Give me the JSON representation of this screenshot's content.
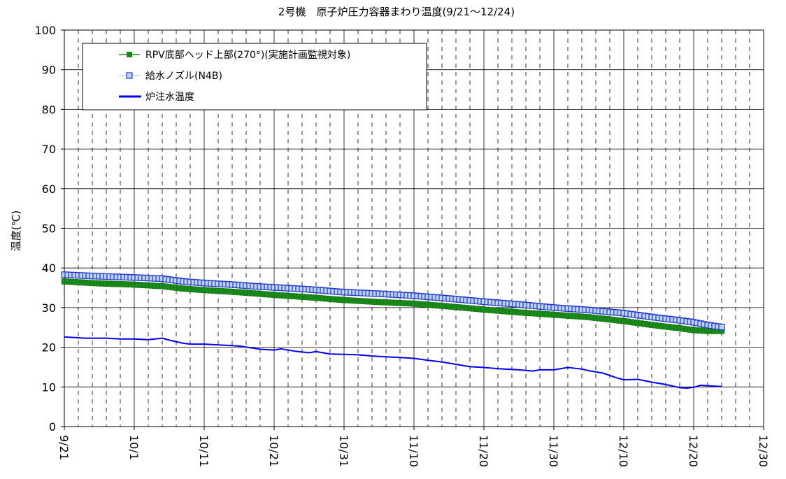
{
  "chart_data": {
    "type": "line",
    "title": "2号機　原子炉圧力容器まわり温度(9/21～12/24)",
    "xlabel": "",
    "ylabel": "温度(℃)",
    "ylim": [
      0,
      100
    ],
    "yticks": [
      0,
      10,
      20,
      30,
      40,
      50,
      60,
      70,
      80,
      90,
      100
    ],
    "x_day_range": [
      0,
      100
    ],
    "xticks": [
      {
        "day": 0,
        "label": "9/21"
      },
      {
        "day": 10,
        "label": "10/1"
      },
      {
        "day": 20,
        "label": "10/11"
      },
      {
        "day": 30,
        "label": "10/21"
      },
      {
        "day": 40,
        "label": "10/31"
      },
      {
        "day": 50,
        "label": "11/10"
      },
      {
        "day": 60,
        "label": "11/20"
      },
      {
        "day": 70,
        "label": "11/30"
      },
      {
        "day": 80,
        "label": "12/10"
      },
      {
        "day": 90,
        "label": "12/20"
      },
      {
        "day": 100,
        "label": "12/30"
      }
    ],
    "grid": true,
    "legend_position": "top-left",
    "series": [
      {
        "name": "RPV底部ヘッド上部(270°)(実施計画監視対象)",
        "color": "#1a8a1a",
        "marker": "filled-square",
        "x": [
          0,
          5,
          10,
          14,
          17,
          20,
          24,
          27,
          30,
          35,
          40,
          45,
          50,
          55,
          60,
          65,
          70,
          75,
          80,
          85,
          88,
          90,
          92,
          94
        ],
        "y": [
          36.6,
          36.1,
          35.8,
          35.4,
          34.8,
          34.4,
          34.0,
          33.6,
          33.2,
          32.6,
          31.9,
          31.4,
          31.0,
          30.3,
          29.5,
          28.8,
          28.2,
          27.6,
          26.6,
          25.4,
          24.8,
          24.3,
          24.1,
          24.1
        ]
      },
      {
        "name": "給水ノズル(N4B)",
        "color": "#2233cc",
        "marker": "hollow-square",
        "x": [
          0,
          5,
          10,
          14,
          17,
          20,
          24,
          27,
          30,
          35,
          40,
          45,
          50,
          55,
          60,
          65,
          70,
          75,
          80,
          85,
          88,
          90,
          92,
          94
        ],
        "y": [
          38.3,
          37.9,
          37.6,
          37.3,
          36.6,
          36.2,
          35.8,
          35.4,
          35.1,
          34.6,
          33.9,
          33.5,
          33.0,
          32.3,
          31.5,
          30.8,
          30.0,
          29.4,
          28.6,
          27.4,
          26.8,
          26.3,
          25.6,
          25.1
        ]
      },
      {
        "name": "炉注水温度",
        "color": "#0000ee",
        "marker": "none",
        "x": [
          0,
          3,
          6,
          8,
          10,
          12,
          14,
          15,
          17,
          18,
          20,
          23,
          25,
          28,
          30,
          31,
          33,
          35,
          36,
          38,
          40,
          42,
          44,
          46,
          48,
          50,
          52,
          54,
          56,
          58,
          60,
          62,
          65,
          67,
          68,
          70,
          72,
          74,
          75,
          77,
          79,
          80,
          82,
          84,
          86,
          88,
          89,
          90,
          91,
          92,
          93,
          94
        ],
        "y": [
          22.6,
          22.3,
          22.3,
          22.1,
          22.1,
          21.9,
          22.3,
          21.8,
          21.0,
          20.8,
          20.8,
          20.5,
          20.3,
          19.5,
          19.3,
          19.6,
          19.0,
          18.6,
          18.9,
          18.3,
          18.2,
          18.1,
          17.8,
          17.6,
          17.4,
          17.2,
          16.7,
          16.3,
          15.7,
          15.1,
          14.9,
          14.6,
          14.3,
          14.0,
          14.3,
          14.3,
          14.9,
          14.5,
          14.1,
          13.5,
          12.3,
          11.8,
          11.9,
          11.2,
          10.6,
          9.8,
          9.7,
          9.9,
          10.4,
          10.3,
          10.2,
          10.1
        ]
      }
    ]
  }
}
